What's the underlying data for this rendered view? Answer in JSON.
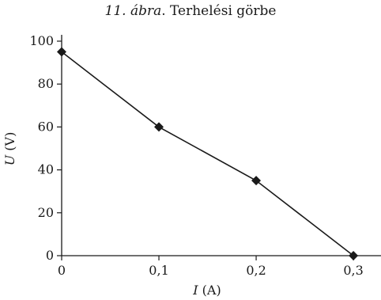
{
  "caption": {
    "prefix": "11. ábra",
    "suffix": ". Terhelési görbe"
  },
  "chart_data": {
    "type": "line",
    "x": [
      0,
      0.1,
      0.2,
      0.3
    ],
    "y": [
      95,
      60,
      35,
      0
    ],
    "x_tick_values": [
      0,
      0.1,
      0.2,
      0.3
    ],
    "x_tick_labels": [
      "0",
      "0,1",
      "0,2",
      "0,3"
    ],
    "y_tick_values": [
      0,
      20,
      40,
      60,
      80,
      100
    ],
    "y_tick_labels": [
      "0",
      "20",
      "40",
      "60",
      "80",
      "100"
    ],
    "xlim": [
      0,
      0.33
    ],
    "ylim": [
      0,
      100
    ],
    "xlabel_var": "I",
    "xlabel_unit": " (A)",
    "ylabel_var": "U",
    "ylabel_unit": " (V)",
    "marker": "diamond",
    "grid": false,
    "color": "#1a1a1a"
  }
}
